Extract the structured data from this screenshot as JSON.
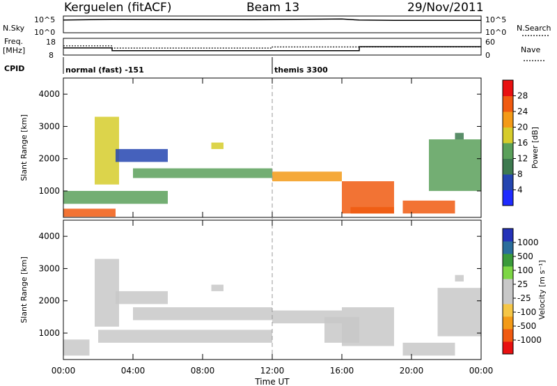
{
  "header": {
    "station": "Kerguelen (fitACF)",
    "beam": "Beam 13",
    "date": "29/Nov/2011"
  },
  "status_panels": {
    "nsky_label": "N.Sky",
    "nsky_ticks": [
      "10^5",
      "10^0"
    ],
    "nsearch_label": "N.Search",
    "nsearch_ticks": [
      "10^5",
      "10^0"
    ],
    "freq_label": [
      "Freq.",
      "[MHz]"
    ],
    "freq_ticks": [
      "18",
      "8"
    ],
    "nave_label": "Nave",
    "nave_ticks": [
      "60",
      "0"
    ],
    "cpid_label": "CPID",
    "cpid_modes": [
      {
        "name": "normal (fast) -151",
        "start_hour": 0,
        "end_hour": 12
      },
      {
        "name": "themis 3300",
        "start_hour": 12,
        "end_hour": 24
      }
    ]
  },
  "x_axis": {
    "label": "Time UT",
    "ticks": [
      "00:00",
      "04:00",
      "08:00",
      "12:00",
      "16:00",
      "20:00",
      "00:00"
    ],
    "range_hours": [
      0,
      24
    ]
  },
  "y_axis": {
    "label": "Slant Range [km]",
    "ticks": [
      "1000",
      "2000",
      "3000",
      "4000"
    ],
    "range_km": [
      180,
      4500
    ]
  },
  "colors": {
    "power": [
      "#1f2bff",
      "#2445b0",
      "#3d7a4f",
      "#5aa05a",
      "#d6cc2b",
      "#f39a17",
      "#f05a10",
      "#e81010"
    ],
    "velocity": [
      "#e81010",
      "#f05a10",
      "#f39a17",
      "#f5c646",
      "#c8c8c8",
      "#c8c8c8",
      "#7dd645",
      "#3a9a3a",
      "#2a6d9b",
      "#2432b8"
    ],
    "ground_scatter": "#c8c8c8"
  },
  "power_colorbar": {
    "label": "Power [dB]",
    "ticks": [
      "28",
      "24",
      "20",
      "16",
      "12",
      "8",
      "4"
    ]
  },
  "velocity_colorbar": {
    "label": "Velocity [m s⁻¹]",
    "ticks": [
      "1000",
      "500",
      "100",
      "25",
      "-25",
      "-100",
      "-500",
      "-1000"
    ]
  },
  "chart_data": {
    "type": "heatmap",
    "title": "Kerguelen (fitACF)  Beam 13  29/Nov/2011",
    "xlabel": "Time UT",
    "x_unit": "hour",
    "xlim": [
      0,
      24
    ],
    "ylim": [
      180,
      4500
    ],
    "panels": [
      {
        "name": "Power",
        "ylabel": "Slant Range [km]",
        "colorbar": "Power [dB]",
        "zlim": [
          0,
          31
        ],
        "features": [
          {
            "t": [
              0.0,
              3.0
            ],
            "r": [
              200,
              450
            ],
            "value": 24
          },
          {
            "t": [
              0.0,
              6.0
            ],
            "r": [
              600,
              1000
            ],
            "value": 12
          },
          {
            "t": [
              1.8,
              3.2
            ],
            "r": [
              1200,
              3300
            ],
            "value": 16
          },
          {
            "t": [
              3.0,
              6.0
            ],
            "r": [
              1900,
              2300
            ],
            "value": 6
          },
          {
            "t": [
              4.0,
              12.0
            ],
            "r": [
              1400,
              1700
            ],
            "value": 14
          },
          {
            "t": [
              8.5,
              9.2
            ],
            "r": [
              2300,
              2500
            ],
            "value": 16
          },
          {
            "t": [
              12.0,
              16.0
            ],
            "r": [
              1300,
              1600
            ],
            "value": 22
          },
          {
            "t": [
              16.0,
              19.0
            ],
            "r": [
              300,
              1300
            ],
            "value": 24
          },
          {
            "t": [
              16.5,
              19.0
            ],
            "r": [
              300,
              500
            ],
            "value": 26
          },
          {
            "t": [
              19.5,
              22.5
            ],
            "r": [
              300,
              700
            ],
            "value": 26
          },
          {
            "t": [
              21.0,
              24.0
            ],
            "r": [
              1000,
              2600
            ],
            "value": 12
          },
          {
            "t": [
              22.5,
              23.0
            ],
            "r": [
              2600,
              2800
            ],
            "value": 10
          }
        ]
      },
      {
        "name": "Velocity",
        "ylabel": "Slant Range [km]",
        "colorbar": "Velocity [m s⁻¹]",
        "zlim": [
          -1000,
          1000
        ],
        "features": [
          {
            "t": [
              0.0,
              1.5
            ],
            "r": [
              300,
              800
            ],
            "value": -120
          },
          {
            "t": [
              1.8,
              3.2
            ],
            "r": [
              1200,
              3300
            ],
            "value": -150
          },
          {
            "t": [
              3.0,
              6.0
            ],
            "r": [
              1900,
              2300
            ],
            "value": 0
          },
          {
            "t": [
              4.0,
              12.0
            ],
            "r": [
              1400,
              1800
            ],
            "value": 0
          },
          {
            "t": [
              2.0,
              12.0
            ],
            "r": [
              700,
              1100
            ],
            "value": 0
          },
          {
            "t": [
              8.5,
              9.2
            ],
            "r": [
              2300,
              2500
            ],
            "value": -200
          },
          {
            "t": [
              12.0,
              16.0
            ],
            "r": [
              1300,
              1700
            ],
            "value": 0
          },
          {
            "t": [
              16.0,
              19.0
            ],
            "r": [
              600,
              1800
            ],
            "value": 0
          },
          {
            "t": [
              15.0,
              17.0
            ],
            "r": [
              700,
              1500
            ],
            "value": 150
          },
          {
            "t": [
              19.5,
              22.5
            ],
            "r": [
              300,
              700
            ],
            "value": 150
          },
          {
            "t": [
              21.5,
              24.0
            ],
            "r": [
              900,
              2400
            ],
            "value": -150
          },
          {
            "t": [
              22.5,
              23.0
            ],
            "r": [
              2600,
              2800
            ],
            "value": 0
          }
        ]
      }
    ],
    "status": {
      "nsky": {
        "ylim": [
          0,
          5
        ],
        "values": [
          [
            0,
            3.8
          ],
          [
            2.8,
            4.0
          ],
          [
            11.0,
            3.9
          ],
          [
            16.0,
            4.1
          ],
          [
            17.0,
            3.8
          ],
          [
            19.0,
            3.7
          ],
          [
            24,
            3.7
          ]
        ]
      },
      "freq_mhz": {
        "ylim": [
          8,
          18
        ],
        "values": [
          [
            0,
            12.3
          ],
          [
            2.8,
            12.3
          ],
          [
            2.8,
            10.6
          ],
          [
            17.0,
            10.6
          ],
          [
            17.0,
            13.0
          ],
          [
            24,
            13.0
          ]
        ]
      },
      "nave": {
        "ylim": [
          0,
          60
        ],
        "values": [
          [
            0,
            33
          ],
          [
            2.8,
            33
          ],
          [
            2.8,
            25
          ],
          [
            12.0,
            25
          ],
          [
            12.0,
            29
          ],
          [
            24,
            29
          ]
        ]
      }
    }
  }
}
